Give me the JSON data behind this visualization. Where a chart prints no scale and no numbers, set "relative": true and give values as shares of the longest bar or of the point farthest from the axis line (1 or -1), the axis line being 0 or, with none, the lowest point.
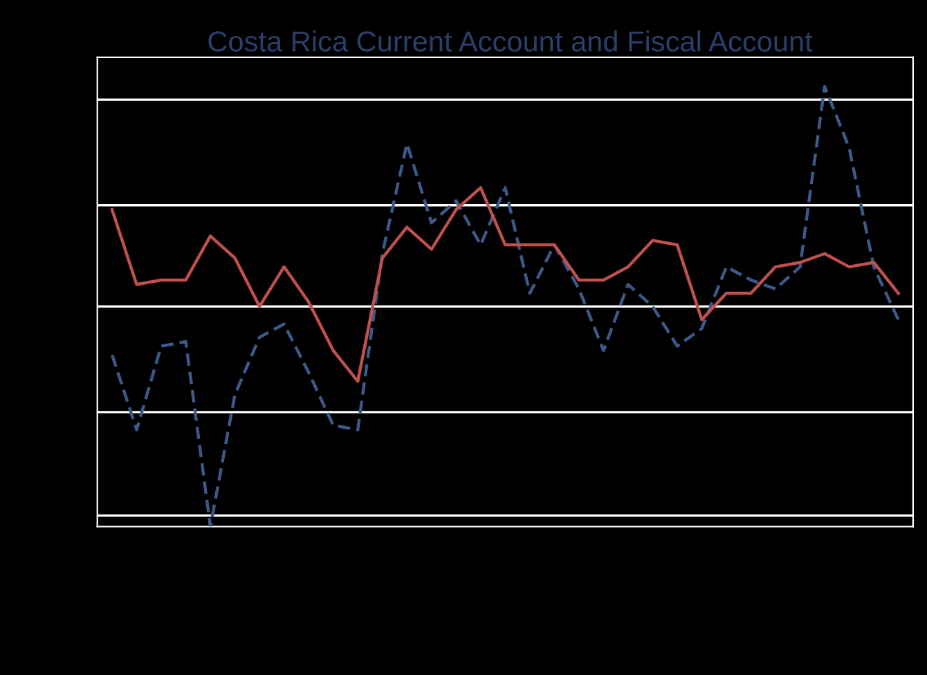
{
  "chart_data": {
    "type": "line",
    "title": "Costa Rica Current Account and Fiscal Account",
    "relative": true,
    "grid": "y",
    "marker": "none",
    "categories": [
      null,
      null,
      null,
      null,
      null,
      null,
      null,
      null,
      null,
      null,
      null,
      null,
      null,
      null,
      null,
      null,
      null,
      null,
      null,
      null,
      null,
      null,
      null,
      null,
      null,
      null,
      null,
      null,
      null,
      null,
      null,
      null,
      null
    ],
    "series": [
      {
        "color": "#3b5a8a",
        "line_style": "dashed",
        "values": [
          0.39,
          0.22,
          0.41,
          0.42,
          0,
          0.3,
          0.43,
          0.46,
          0.35,
          0.23,
          0.22,
          0.62,
          0.87,
          0.69,
          0.74,
          0.64,
          0.77,
          0.53,
          0.64,
          0.54,
          0.4,
          0.55,
          0.5,
          0.41,
          0.45,
          0.59,
          0.56,
          0.54,
          0.59,
          1,
          0.86,
          0.59,
          0.47
        ]
      },
      {
        "color": "#c0504d",
        "line_style": "solid",
        "values": [
          0.72,
          0.55,
          0.56,
          0.56,
          0.66,
          0.61,
          0.5,
          0.59,
          0.51,
          0.4,
          0.33,
          0.61,
          0.68,
          0.63,
          0.72,
          0.77,
          0.64,
          0.64,
          0.64,
          0.56,
          0.56,
          0.59,
          0.65,
          0.64,
          0.47,
          0.53,
          0.53,
          0.59,
          0.6,
          0.62,
          0.59,
          0.6,
          0.53
        ]
      }
    ]
  }
}
